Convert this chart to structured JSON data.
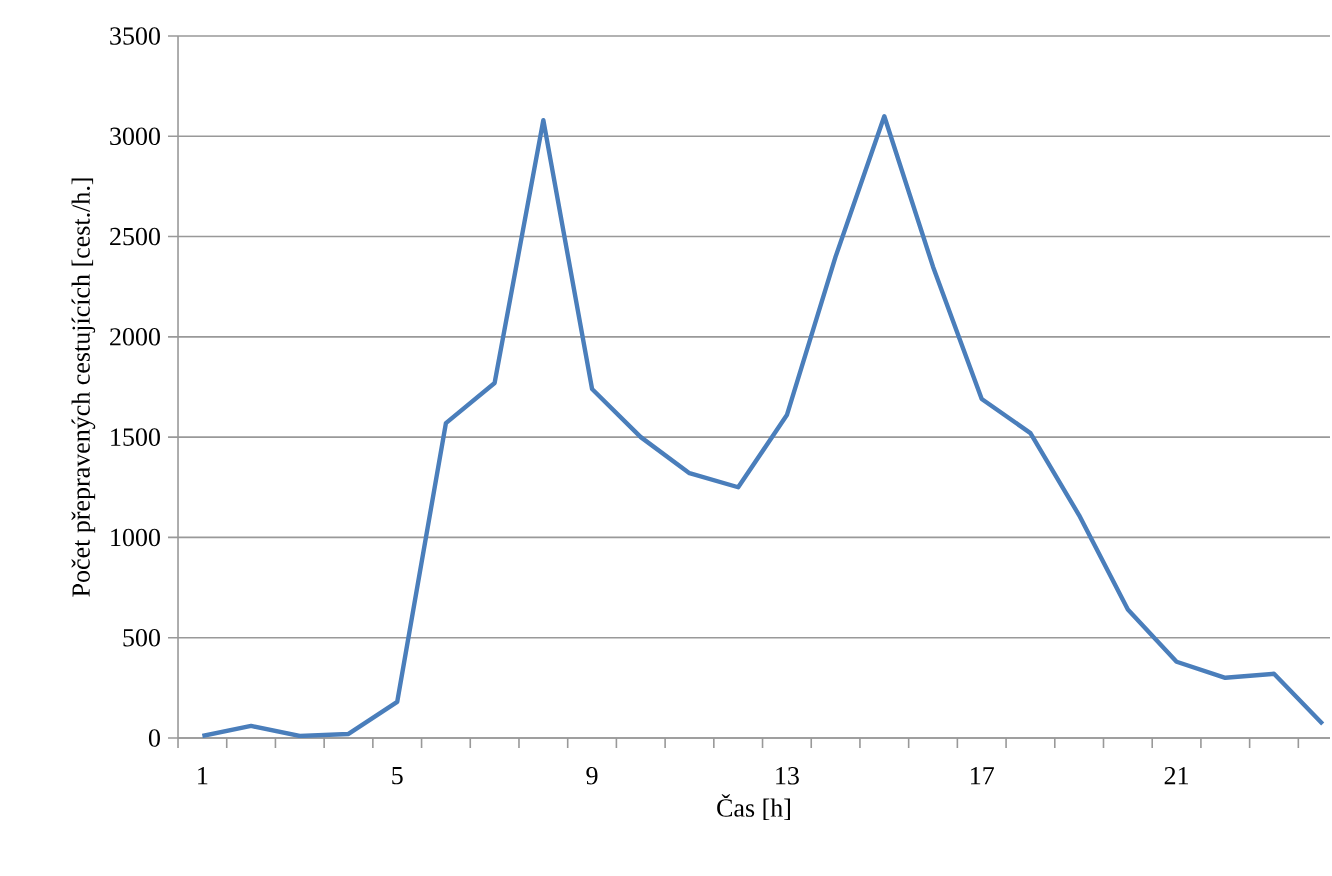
{
  "chart_data": {
    "type": "line",
    "xlabel": "Čas [h]",
    "ylabel": "Počet přepravených cestujících [cest./h.]",
    "categories": [
      "1",
      null,
      null,
      null,
      "5",
      null,
      null,
      null,
      "9",
      null,
      null,
      null,
      "13",
      null,
      null,
      null,
      "17",
      null,
      null,
      null,
      "21",
      null,
      null,
      null
    ],
    "series": [
      {
        "color": "#4a7ebb",
        "values": [
          10,
          60,
          10,
          20,
          180,
          1570,
          1770,
          3080,
          1740,
          1500,
          1320,
          1250,
          1610,
          2400,
          3100,
          2350,
          1690,
          1520,
          1110,
          640,
          380,
          300,
          320,
          70
        ]
      }
    ],
    "ylim": [
      0,
      3500
    ],
    "yticks": [
      0,
      500,
      1000,
      1500,
      2000,
      2500,
      3000,
      3500
    ],
    "grid": "y",
    "marker": "none",
    "line_style": "solid"
  }
}
